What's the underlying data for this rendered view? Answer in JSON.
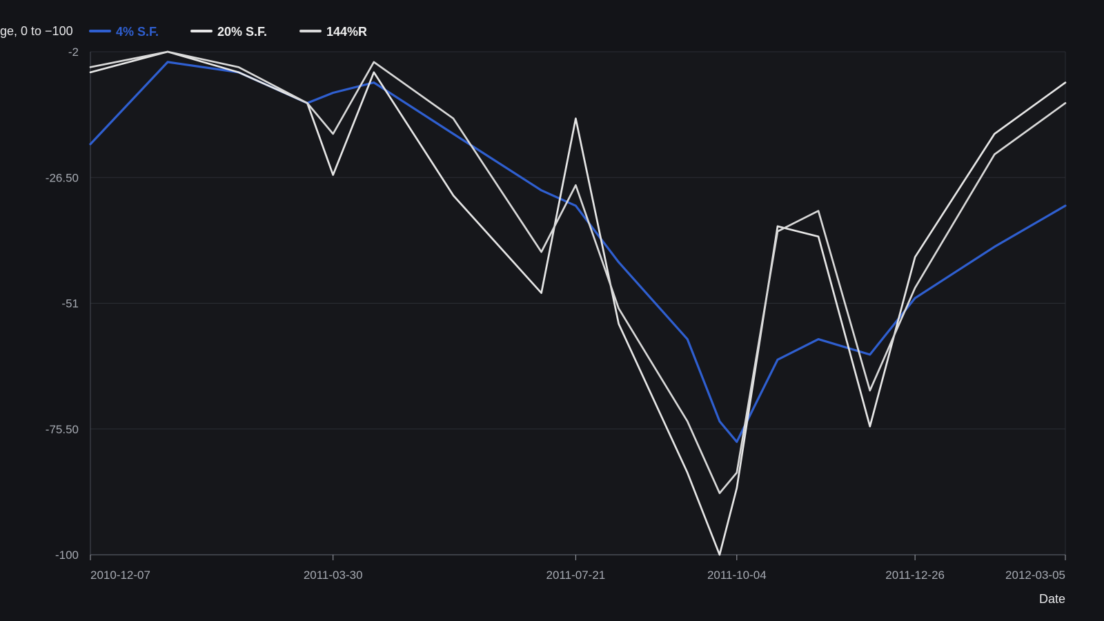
{
  "chart_data": {
    "type": "line",
    "title": "",
    "xlabel": "Date",
    "ylabel": "ge, 0 to −100",
    "ylim": [
      -100,
      -2
    ],
    "xlim": [
      "2010-12-07",
      "2012-03-05"
    ],
    "grid": true,
    "legend_position": "top-left",
    "x_ticks": [
      "2010-12-07",
      "2011-03-30",
      "2011-07-21",
      "2011-10-04",
      "2011-12-26",
      "2012-03-05"
    ],
    "y_ticks": [
      {
        "value": -2,
        "label": "-2"
      },
      {
        "value": -26.5,
        "label": "-26.50"
      },
      {
        "value": -51,
        "label": "-51"
      },
      {
        "value": -75.5,
        "label": "-75.50"
      },
      {
        "value": -100,
        "label": "-100"
      }
    ],
    "series": [
      {
        "name": "4% S.F.",
        "color": "#2f5fd0",
        "points": [
          {
            "x": "2010-12-07",
            "y": -20
          },
          {
            "x": "2011-01-12",
            "y": -4
          },
          {
            "x": "2011-02-14",
            "y": -6
          },
          {
            "x": "2011-03-18",
            "y": -12
          },
          {
            "x": "2011-03-30",
            "y": -10
          },
          {
            "x": "2011-04-18",
            "y": -8
          },
          {
            "x": "2011-05-25",
            "y": -18
          },
          {
            "x": "2011-07-05",
            "y": -29
          },
          {
            "x": "2011-07-21",
            "y": -32
          },
          {
            "x": "2011-08-10",
            "y": -43
          },
          {
            "x": "2011-09-11",
            "y": -58
          },
          {
            "x": "2011-09-26",
            "y": -74
          },
          {
            "x": "2011-10-04",
            "y": -78
          },
          {
            "x": "2011-10-23",
            "y": -62
          },
          {
            "x": "2011-11-11",
            "y": -58
          },
          {
            "x": "2011-12-05",
            "y": -61
          },
          {
            "x": "2011-12-26",
            "y": -50
          },
          {
            "x": "2012-02-01",
            "y": -40
          },
          {
            "x": "2012-03-05",
            "y": -32
          }
        ]
      },
      {
        "name": "20% S.F.",
        "color": "#e6e6e6",
        "points": [
          {
            "x": "2010-12-07",
            "y": -6
          },
          {
            "x": "2011-01-12",
            "y": -2
          },
          {
            "x": "2011-02-14",
            "y": -6
          },
          {
            "x": "2011-03-18",
            "y": -12
          },
          {
            "x": "2011-03-30",
            "y": -26
          },
          {
            "x": "2011-04-18",
            "y": -6
          },
          {
            "x": "2011-05-25",
            "y": -30
          },
          {
            "x": "2011-07-05",
            "y": -49
          },
          {
            "x": "2011-07-21",
            "y": -15
          },
          {
            "x": "2011-08-10",
            "y": -55
          },
          {
            "x": "2011-09-11",
            "y": -84
          },
          {
            "x": "2011-09-26",
            "y": -100
          },
          {
            "x": "2011-10-04",
            "y": -87
          },
          {
            "x": "2011-10-23",
            "y": -36
          },
          {
            "x": "2011-11-11",
            "y": -38
          },
          {
            "x": "2011-12-05",
            "y": -75
          },
          {
            "x": "2011-12-26",
            "y": -42
          },
          {
            "x": "2012-02-01",
            "y": -18
          },
          {
            "x": "2012-03-05",
            "y": -8
          }
        ]
      },
      {
        "name": "144%R",
        "color": "#d9d9d9",
        "points": [
          {
            "x": "2010-12-07",
            "y": -5
          },
          {
            "x": "2011-01-12",
            "y": -2
          },
          {
            "x": "2011-02-14",
            "y": -5
          },
          {
            "x": "2011-03-18",
            "y": -12
          },
          {
            "x": "2011-03-30",
            "y": -18
          },
          {
            "x": "2011-04-18",
            "y": -4
          },
          {
            "x": "2011-05-25",
            "y": -15
          },
          {
            "x": "2011-07-05",
            "y": -41
          },
          {
            "x": "2011-07-21",
            "y": -28
          },
          {
            "x": "2011-08-10",
            "y": -52
          },
          {
            "x": "2011-09-11",
            "y": -74
          },
          {
            "x": "2011-09-26",
            "y": -88
          },
          {
            "x": "2011-10-04",
            "y": -84
          },
          {
            "x": "2011-10-23",
            "y": -37
          },
          {
            "x": "2011-11-11",
            "y": -33
          },
          {
            "x": "2011-12-05",
            "y": -68
          },
          {
            "x": "2011-12-26",
            "y": -48
          },
          {
            "x": "2012-02-01",
            "y": -22
          },
          {
            "x": "2012-03-05",
            "y": -12
          }
        ]
      }
    ]
  }
}
